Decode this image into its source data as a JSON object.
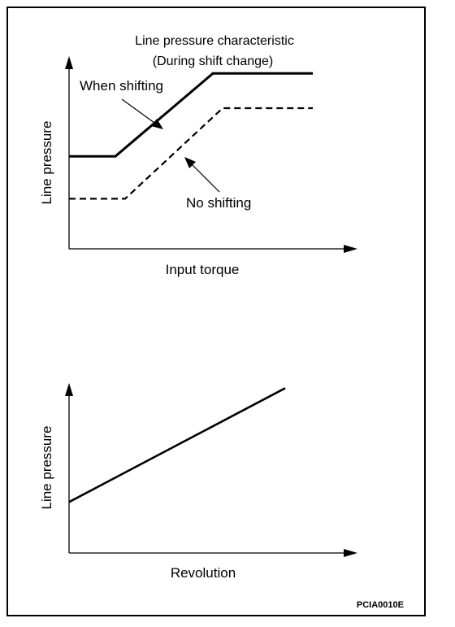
{
  "figure_code": "PCIA0010E",
  "chart_data": [
    {
      "type": "line",
      "title": "Line pressure characteristic",
      "subtitle": "(During shift change)",
      "xlabel": "Input torque",
      "ylabel": "Line pressure",
      "grid": false,
      "series": [
        {
          "name": "When shifting",
          "style": "solid",
          "x": [
            0,
            0.19,
            0.59,
            1.0
          ],
          "y": [
            0.48,
            0.48,
            0.91,
            0.91
          ]
        },
        {
          "name": "No shifting",
          "style": "dashed",
          "x": [
            0,
            0.23,
            0.63,
            1.0
          ],
          "y": [
            0.26,
            0.26,
            0.73,
            0.73
          ]
        }
      ],
      "annotations": [
        {
          "text": "When shifting",
          "series": "When shifting"
        },
        {
          "text": "No shifting",
          "series": "No shifting"
        }
      ]
    },
    {
      "type": "line",
      "title": "",
      "xlabel": "Revolution",
      "ylabel": "Line pressure",
      "grid": false,
      "series": [
        {
          "style": "solid",
          "x": [
            0,
            1.0
          ],
          "y": [
            0.3,
            0.97
          ]
        }
      ]
    }
  ]
}
